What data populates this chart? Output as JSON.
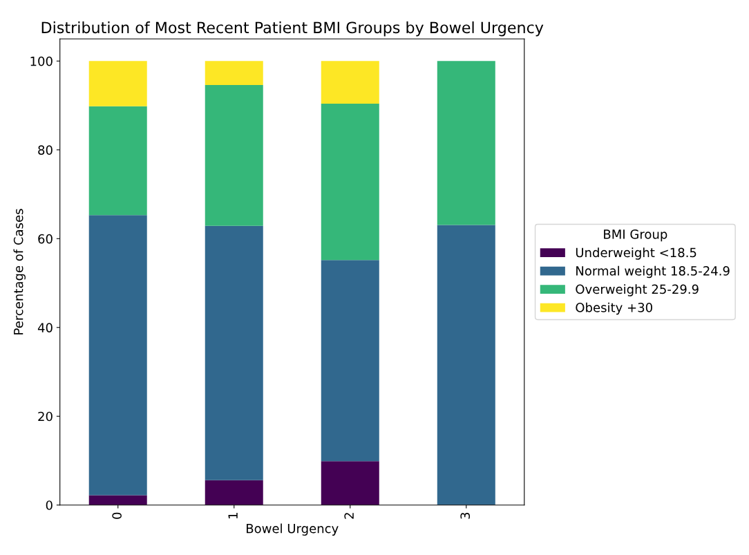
{
  "chart_data": {
    "type": "bar",
    "title": "Distribution of Most Recent Patient BMI Groups by Bowel Urgency",
    "xlabel": "Bowel Urgency",
    "ylabel": "Percentage of Cases",
    "legend_title": "BMI Group",
    "categories": [
      "0",
      "1",
      "2",
      "3"
    ],
    "stacked": true,
    "series": [
      {
        "name": "Underweight <18.5",
        "color": "#440154",
        "values": [
          2.2,
          5.6,
          9.9,
          0
        ]
      },
      {
        "name": "Normal weight 18.5-24.9",
        "color": "#31688e",
        "values": [
          63.1,
          57.3,
          45.3,
          63.1
        ]
      },
      {
        "name": "Overweight 25-29.9",
        "color": "#35b779",
        "values": [
          24.5,
          31.7,
          35.2,
          36.9
        ]
      },
      {
        "name": "Obesity +30",
        "color": "#fde725",
        "values": [
          10.2,
          5.4,
          9.6,
          0
        ]
      }
    ],
    "ylim": [
      0,
      105
    ],
    "yticks": [
      0,
      20,
      40,
      60,
      80,
      100
    ],
    "legend": "right",
    "grid": false
  }
}
